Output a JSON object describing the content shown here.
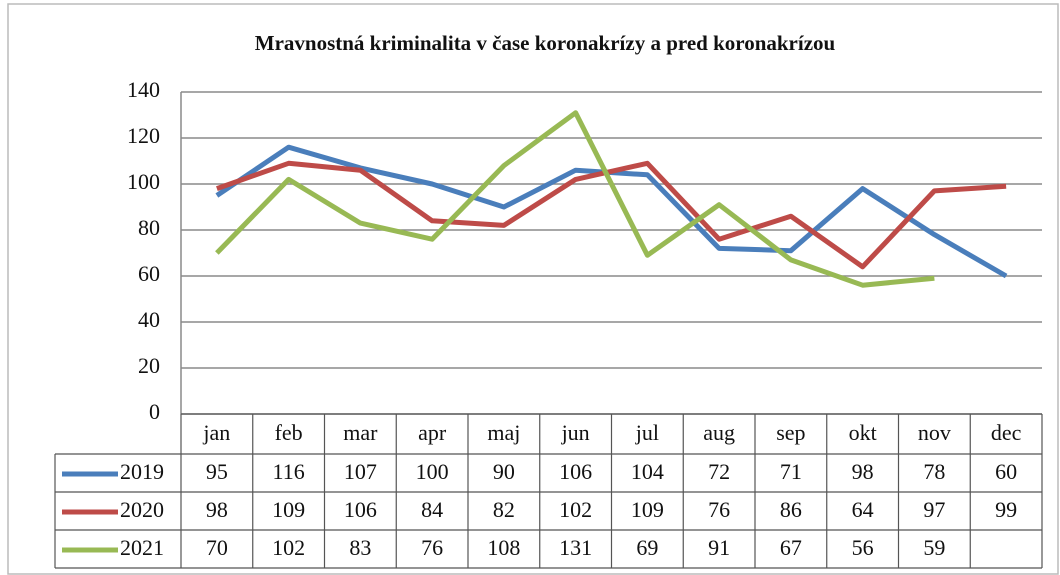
{
  "chart_data": {
    "type": "line",
    "title": "Mravnostná kriminalita v čase koronakrízy a pred koronakrízou",
    "categories": [
      "jan",
      "feb",
      "mar",
      "apr",
      "maj",
      "jun",
      "jul",
      "aug",
      "sep",
      "okt",
      "nov",
      "dec"
    ],
    "series": [
      {
        "name": "2019",
        "color": "#4a7ebb",
        "values": [
          95,
          116,
          107,
          100,
          90,
          106,
          104,
          72,
          71,
          98,
          78,
          60
        ]
      },
      {
        "name": "2020",
        "color": "#be4b48",
        "values": [
          98,
          109,
          106,
          84,
          82,
          102,
          109,
          76,
          86,
          64,
          97,
          99
        ]
      },
      {
        "name": "2021",
        "color": "#98b954",
        "values": [
          70,
          102,
          83,
          76,
          108,
          131,
          69,
          91,
          67,
          56,
          59,
          null
        ]
      }
    ],
    "ylim": [
      0,
      140
    ],
    "yticks": [
      0,
      20,
      40,
      60,
      80,
      100,
      120,
      140
    ],
    "grid": true
  }
}
